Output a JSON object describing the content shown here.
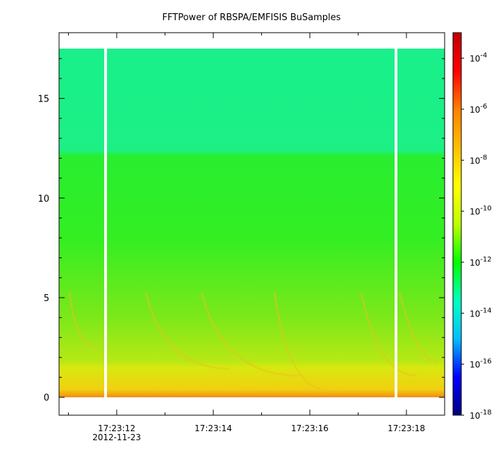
{
  "chart_data": {
    "type": "heatmap",
    "title": "FFTPower of RBSPA/EMFISIS  BuSamples",
    "xlabel": "",
    "ylabel": "",
    "x_ticks": [
      "17:23:12",
      "17:23:14",
      "17:23:16",
      "17:23:18"
    ],
    "x_date_label": "2012-11-23",
    "y_ticks": [
      0,
      5,
      10,
      15
    ],
    "ylim": [
      -0.9,
      18.3
    ],
    "data_ylim": [
      0,
      17.5
    ],
    "colorbar": {
      "scale": "log",
      "range": [
        1e-18,
        0.001
      ],
      "tick_values": [
        -18,
        -16,
        -14,
        -12,
        -10,
        -8,
        -6,
        -4
      ],
      "tick_base": "10",
      "colors": [
        "#00007f",
        "#0000ff",
        "#00bfff",
        "#00ffbf",
        "#00ff00",
        "#bfff00",
        "#ffff00",
        "#ffbf00",
        "#ff7f00",
        "#ff0000",
        "#bf0000"
      ]
    },
    "gaps": [
      "before 17:23:12",
      "before 17:23:18"
    ],
    "colors": {
      "upper_band": "#19f08a",
      "middle_band": "#33ee22",
      "lower_band": "#d8e810",
      "baseline": "#f08010"
    }
  }
}
